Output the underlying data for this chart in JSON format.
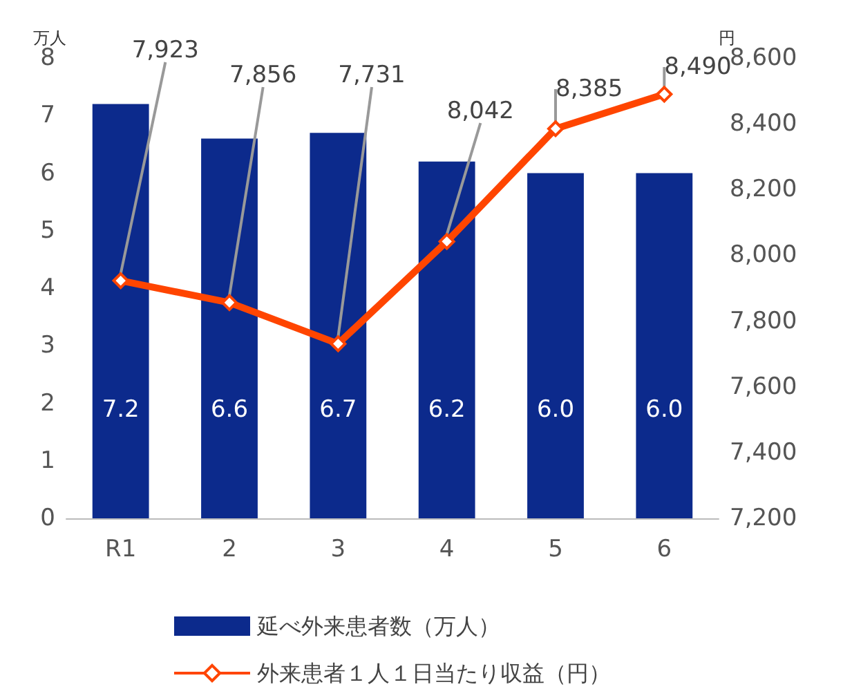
{
  "chart_data": {
    "type": "bar",
    "categories": [
      "R1",
      "2",
      "3",
      "4",
      "5",
      "6"
    ],
    "ylabel": "万人",
    "y2label": "円",
    "ylim": [
      0,
      8
    ],
    "yticks": [
      0,
      1,
      2,
      3,
      4,
      5,
      6,
      7,
      8
    ],
    "y2lim": [
      7200,
      8600
    ],
    "y2ticks": [
      {
        "value": 7200,
        "label": "7,200"
      },
      {
        "value": 7400,
        "label": "7,400"
      },
      {
        "value": 7600,
        "label": "7,600"
      },
      {
        "value": 7800,
        "label": "7,800"
      },
      {
        "value": 8000,
        "label": "8,000"
      },
      {
        "value": 8200,
        "label": "8,200"
      },
      {
        "value": 8400,
        "label": "8,400"
      },
      {
        "value": 8600,
        "label": "8,600"
      }
    ],
    "grid": false,
    "legend": "bottom",
    "marker": "diamond",
    "series": [
      {
        "name": "延べ外来患者数（万人）",
        "color": "#0c2a8c",
        "values": [
          7.2,
          6.6,
          6.7,
          6.2,
          6.0,
          6.0
        ],
        "value_labels": [
          "7.2",
          "6.6",
          "6.7",
          "6.2",
          "6.0",
          "6.0"
        ]
      },
      {
        "name": "外来患者１人１日当たり収益（円）",
        "type": "line",
        "axis": "y2",
        "color": "#ff4500",
        "values": [
          7923,
          7856,
          7731,
          8042,
          8385,
          8490
        ],
        "value_labels": [
          "7,923",
          "7,856",
          "7,731",
          "8,042",
          "8,385",
          "8,490"
        ]
      }
    ]
  }
}
